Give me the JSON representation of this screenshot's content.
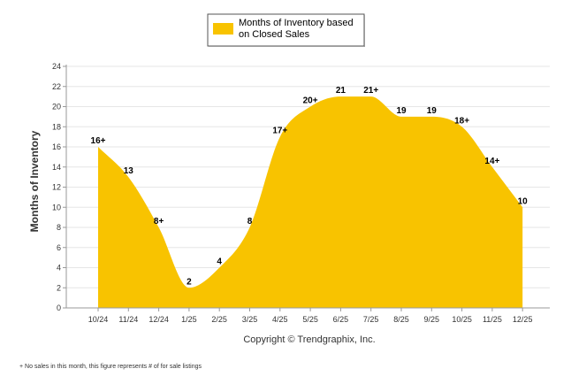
{
  "chart_data": {
    "type": "area",
    "title": "",
    "xlabel": "",
    "ylabel": "Months of Inventory",
    "ylim": [
      0,
      24
    ],
    "yticks": [
      0,
      2,
      4,
      6,
      8,
      10,
      12,
      14,
      16,
      18,
      20,
      22,
      24
    ],
    "grid": true,
    "categories": [
      "10/24",
      "11/24",
      "12/24",
      "1/25",
      "2/25",
      "3/25",
      "4/25",
      "5/25",
      "6/25",
      "7/25",
      "8/25",
      "9/25",
      "10/25",
      "11/25",
      "12/25"
    ],
    "series": [
      {
        "name": "Months of Inventory based on Closed Sales",
        "color": "#f8c300",
        "values": [
          16,
          13,
          8,
          2,
          4,
          8,
          17,
          20,
          21,
          21,
          19,
          19,
          18,
          14,
          10
        ],
        "labels": [
          "16+",
          "13",
          "8+",
          "2",
          "4",
          "8",
          "17+",
          "20+",
          "21",
          "21+",
          "19",
          "19",
          "18+",
          "14+",
          "10"
        ]
      }
    ],
    "legend": {
      "position": "top-center",
      "line1": "Months of Inventory based",
      "line2": "on Closed Sales"
    }
  },
  "copyright": "Copyright © Trendgraphix, Inc.",
  "footnote": "+ No sales in this month, this figure represents # of for sale listings"
}
